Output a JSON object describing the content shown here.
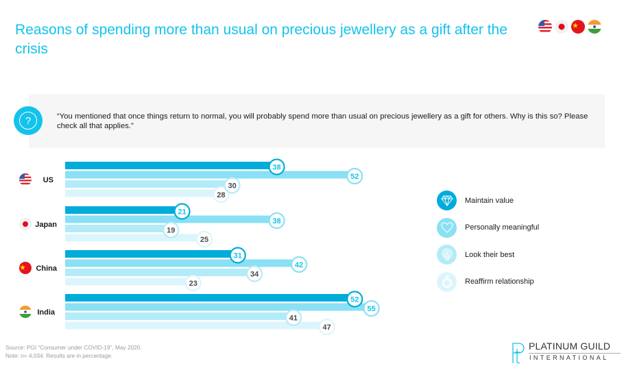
{
  "header": {
    "title": "Reasons of spending more than usual on precious jewellery as a gift after the crisis",
    "flags": [
      "us-flag",
      "japan-flag",
      "china-flag",
      "india-flag"
    ]
  },
  "question": {
    "icon": "question-mark-icon",
    "text": "“You mentioned that once things return to normal, you will probably spend more than usual on precious jewellery as a gift for others. Why is this so? Please check all that applies.”"
  },
  "colors": {
    "accent": "#13c3ec",
    "series": [
      "#00acd9",
      "#8ae0f4",
      "#b3ebf8",
      "#dcf5fc"
    ],
    "ring": [
      "#00acd9",
      "#8ae0f4",
      "#b3ebf8",
      "#dcf5fc"
    ],
    "label_primary": "#13c3ec",
    "label_secondary": "#4a4a4a"
  },
  "chart_data": {
    "type": "bar",
    "orientation": "horizontal",
    "title": "Reasons of spending more than usual on precious jewellery as a gift after the crisis",
    "xlabel": "",
    "ylabel": "",
    "unit": "%",
    "xlim": [
      0,
      60
    ],
    "grid": false,
    "legend_position": "right",
    "categories": [
      "US",
      "Japan",
      "China",
      "India"
    ],
    "series": [
      {
        "name": "Maintain value",
        "icon": "diamond-icon",
        "values": [
          38,
          21,
          31,
          52
        ]
      },
      {
        "name": "Personally meaningful",
        "icon": "heart-icon",
        "values": [
          52,
          38,
          42,
          55
        ]
      },
      {
        "name": "Look their best",
        "icon": "person-spotlight-icon",
        "values": [
          30,
          19,
          34,
          41
        ]
      },
      {
        "name": "Reaffirm relationship",
        "icon": "ring-icon",
        "values": [
          28,
          25,
          23,
          47
        ]
      }
    ]
  },
  "footer": {
    "source": "Source: PGI “Consumer under COVID-19”, May 2020.",
    "note": "Note: n= 4,034. Results are in percentage.",
    "logo_name": "PLATINUM GUILD",
    "logo_sub": "INTERNATIONAL"
  }
}
